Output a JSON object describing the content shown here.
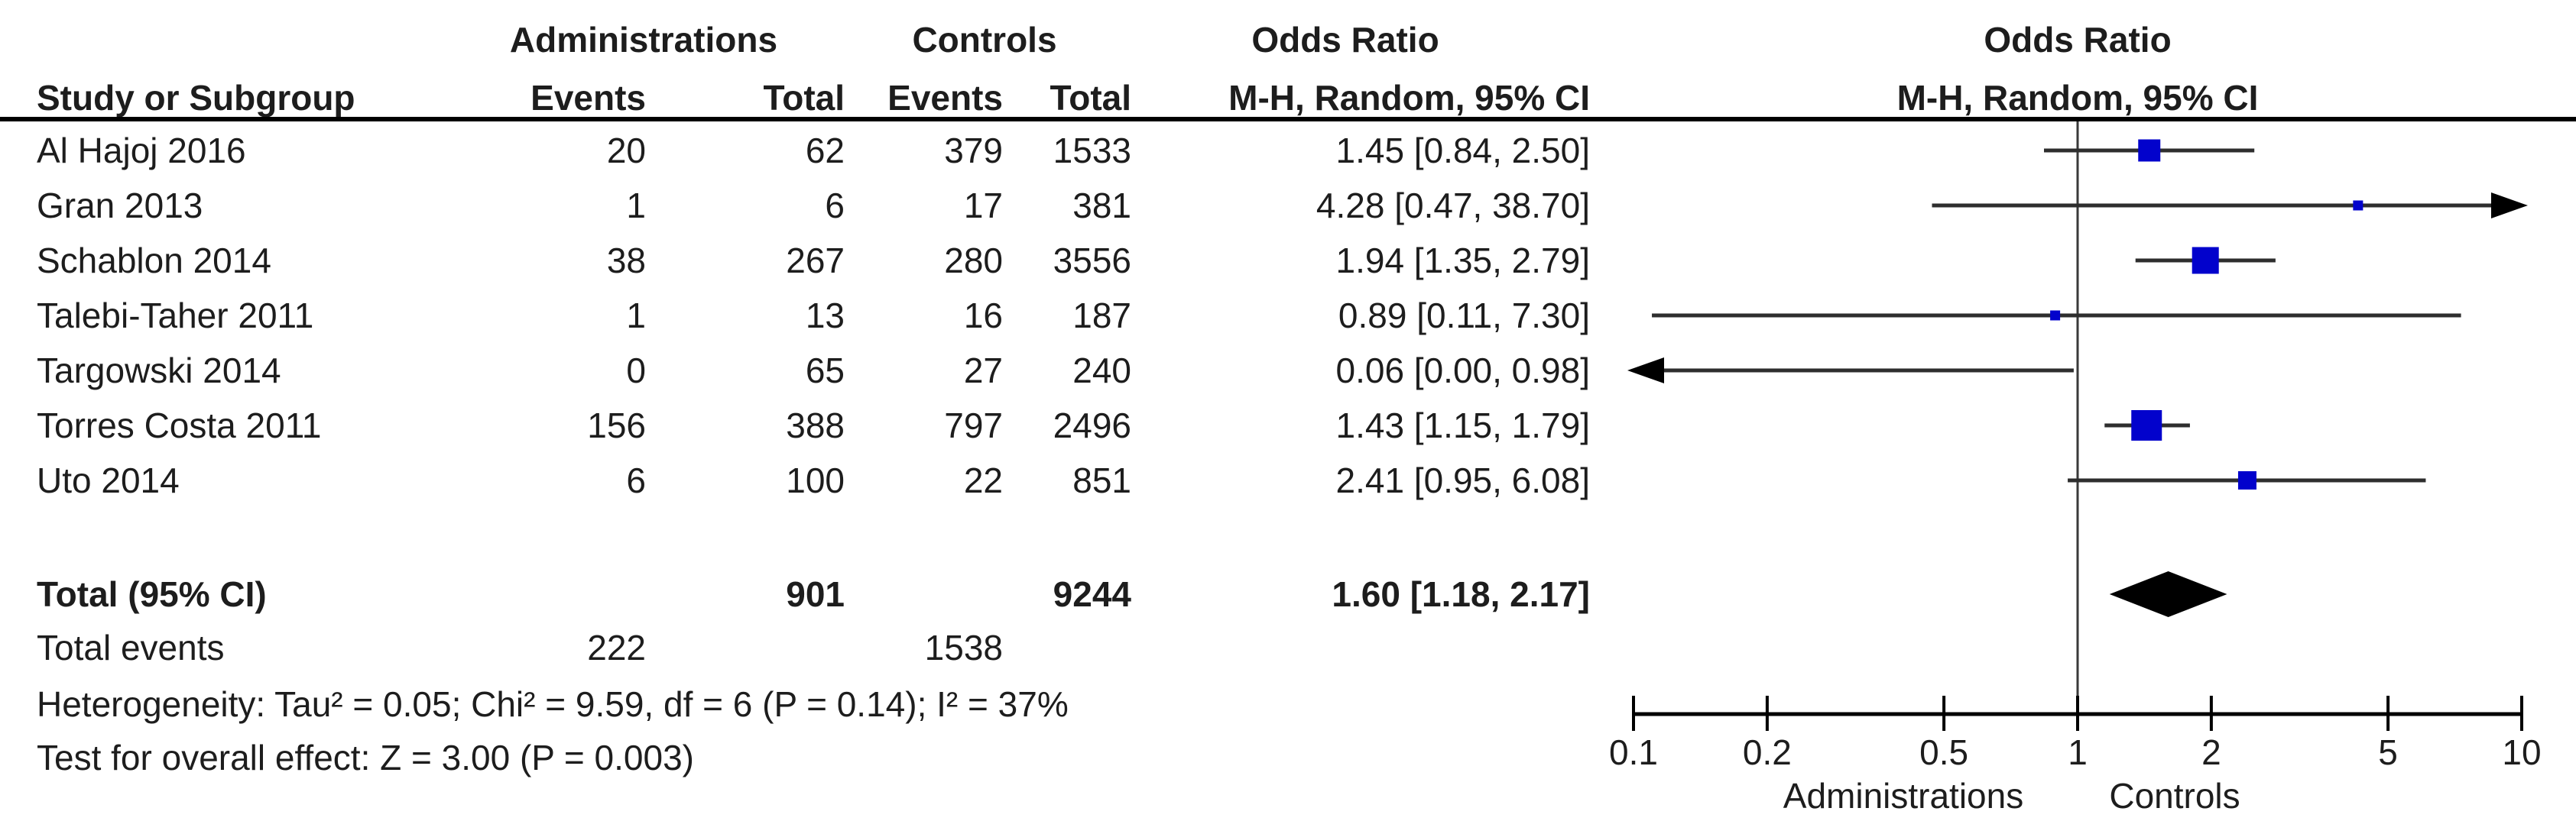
{
  "header": {
    "group1": "Administrations",
    "group2": "Controls",
    "or_left": "Odds Ratio",
    "or_right": "Odds Ratio",
    "study_col": "Study or Subgroup",
    "events1_col": "Events",
    "total1_col": "Total",
    "events2_col": "Events",
    "total2_col": "Total",
    "mh_left": "M-H, Random, 95% CI",
    "mh_right": "M-H, Random, 95% CI"
  },
  "chart_data": {
    "type": "forest",
    "effect_measure": "Odds Ratio",
    "method": "M-H, Random, 95% CI",
    "x_axis": {
      "scale": "log",
      "min": 0.1,
      "max": 10,
      "ticks": [
        0.1,
        0.2,
        0.5,
        1,
        2,
        5,
        10
      ],
      "tick_labels": [
        "0.1",
        "0.2",
        "0.5",
        "1",
        "2",
        "5",
        "10"
      ],
      "left_label": "Administrations",
      "right_label": "Controls"
    },
    "studies": [
      {
        "name": "Al Hajoj 2016",
        "events1": "20",
        "total1": "62",
        "events2": "379",
        "total2": "1533",
        "or_text": "1.45 [0.84, 2.50]",
        "or": 1.45,
        "ci_low": 0.84,
        "ci_high": 2.5,
        "marker_size": 29,
        "arrow_left": false,
        "arrow_right": false
      },
      {
        "name": "Gran 2013",
        "events1": "1",
        "total1": "6",
        "events2": "17",
        "total2": "381",
        "or_text": "4.28 [0.47, 38.70]",
        "or": 4.28,
        "ci_low": 0.47,
        "ci_high": 38.7,
        "marker_size": 13,
        "arrow_left": false,
        "arrow_right": true
      },
      {
        "name": "Schablon 2014",
        "events1": "38",
        "total1": "267",
        "events2": "280",
        "total2": "3556",
        "or_text": "1.94 [1.35, 2.79]",
        "or": 1.94,
        "ci_low": 1.35,
        "ci_high": 2.79,
        "marker_size": 35,
        "arrow_left": false,
        "arrow_right": false
      },
      {
        "name": "Talebi-Taher 2011",
        "events1": "1",
        "total1": "13",
        "events2": "16",
        "total2": "187",
        "or_text": "0.89 [0.11, 7.30]",
        "or": 0.89,
        "ci_low": 0.11,
        "ci_high": 7.3,
        "marker_size": 13,
        "arrow_left": false,
        "arrow_right": false
      },
      {
        "name": "Targowski 2014",
        "events1": "0",
        "total1": "65",
        "events2": "27",
        "total2": "240",
        "or_text": "0.06 [0.00, 0.98]",
        "or": 0.06,
        "ci_low": 0.001,
        "ci_high": 0.98,
        "marker_size": 0,
        "arrow_left": true,
        "arrow_right": false
      },
      {
        "name": "Torres Costa 2011",
        "events1": "156",
        "total1": "388",
        "events2": "797",
        "total2": "2496",
        "or_text": "1.43 [1.15, 1.79]",
        "or": 1.43,
        "ci_low": 1.15,
        "ci_high": 1.79,
        "marker_size": 40,
        "arrow_left": false,
        "arrow_right": false
      },
      {
        "name": "Uto 2014",
        "events1": "6",
        "total1": "100",
        "events2": "22",
        "total2": "851",
        "or_text": "2.41 [0.95, 6.08]",
        "or": 2.41,
        "ci_low": 0.95,
        "ci_high": 6.08,
        "marker_size": 24,
        "arrow_left": false,
        "arrow_right": false
      }
    ],
    "total": {
      "label": "Total (95% CI)",
      "total1": "901",
      "total2": "9244",
      "or_text": "1.60 [1.18, 2.17]",
      "or": 1.6,
      "ci_low": 1.18,
      "ci_high": 2.17
    },
    "total_events": {
      "label": "Total events",
      "events1": "222",
      "events2": "1538"
    },
    "footnotes": {
      "heterogeneity": "Heterogeneity: Tau² = 0.05; Chi² = 9.59, df = 6 (P = 0.14); I² = 37%",
      "overall_effect": "Test for overall effect: Z = 3.00 (P = 0.003)"
    },
    "colors": {
      "marker": "#0202cc",
      "ci_line": "#2e2e2e",
      "diamond": "#000000",
      "axis": "#000000",
      "text": "#1d1d1d"
    }
  }
}
